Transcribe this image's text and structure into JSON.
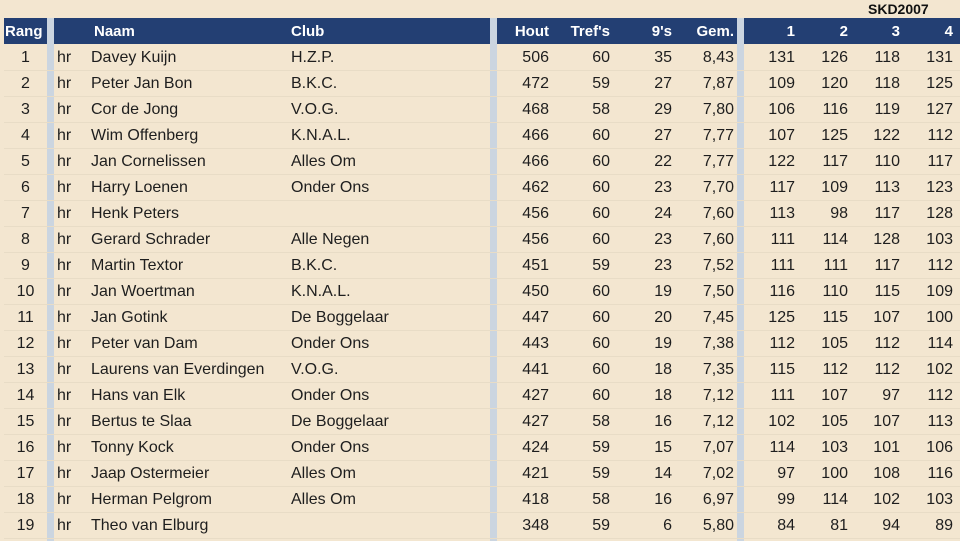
{
  "watermark": "SKD2007",
  "headers": {
    "rang": "Rang",
    "naam": "Naam",
    "club": "Club",
    "hout": "Hout",
    "trefs": "Tref's",
    "negens": "9's",
    "gem": "Gem.",
    "s1": "1",
    "s2": "2",
    "s3": "3",
    "s4": "4"
  },
  "rows": [
    [
      "1",
      "hr",
      "Davey Kuijn",
      "H.Z.P.",
      "506",
      "60",
      "35",
      "8,43",
      "131",
      "126",
      "118",
      "131"
    ],
    [
      "2",
      "hr",
      "Peter Jan Bon",
      "B.K.C.",
      "472",
      "59",
      "27",
      "7,87",
      "109",
      "120",
      "118",
      "125"
    ],
    [
      "3",
      "hr",
      "Cor de Jong",
      "V.O.G.",
      "468",
      "58",
      "29",
      "7,80",
      "106",
      "116",
      "119",
      "127"
    ],
    [
      "4",
      "hr",
      "Wim Offenberg",
      "K.N.A.L.",
      "466",
      "60",
      "27",
      "7,77",
      "107",
      "125",
      "122",
      "112"
    ],
    [
      "5",
      "hr",
      "Jan Cornelissen",
      "Alles Om",
      "466",
      "60",
      "22",
      "7,77",
      "122",
      "117",
      "110",
      "117"
    ],
    [
      "6",
      "hr",
      "Harry Loenen",
      "Onder Ons",
      "462",
      "60",
      "23",
      "7,70",
      "117",
      "109",
      "113",
      "123"
    ],
    [
      "7",
      "hr",
      "Henk Peters",
      "",
      "456",
      "60",
      "24",
      "7,60",
      "113",
      "98",
      "117",
      "128"
    ],
    [
      "8",
      "hr",
      "Gerard Schrader",
      "Alle Negen",
      "456",
      "60",
      "23",
      "7,60",
      "111",
      "114",
      "128",
      "103"
    ],
    [
      "9",
      "hr",
      "Martin Textor",
      "B.K.C.",
      "451",
      "59",
      "23",
      "7,52",
      "111",
      "111",
      "117",
      "112"
    ],
    [
      "10",
      "hr",
      "Jan Woertman",
      "K.N.A.L.",
      "450",
      "60",
      "19",
      "7,50",
      "116",
      "110",
      "115",
      "109"
    ],
    [
      "11",
      "hr",
      "Jan Gotink",
      "De Boggelaar",
      "447",
      "60",
      "20",
      "7,45",
      "125",
      "115",
      "107",
      "100"
    ],
    [
      "12",
      "hr",
      "Peter van Dam",
      "Onder Ons",
      "443",
      "60",
      "19",
      "7,38",
      "112",
      "105",
      "112",
      "114"
    ],
    [
      "13",
      "hr",
      "Laurens van Everdingen",
      "V.O.G.",
      "441",
      "60",
      "18",
      "7,35",
      "115",
      "112",
      "112",
      "102"
    ],
    [
      "14",
      "hr",
      "Hans van Elk",
      "Onder Ons",
      "427",
      "60",
      "18",
      "7,12",
      "111",
      "107",
      "97",
      "112"
    ],
    [
      "15",
      "hr",
      "Bertus te Slaa",
      "De Boggelaar",
      "427",
      "58",
      "16",
      "7,12",
      "102",
      "105",
      "107",
      "113"
    ],
    [
      "16",
      "hr",
      "Tonny Kock",
      "Onder Ons",
      "424",
      "59",
      "15",
      "7,07",
      "114",
      "103",
      "101",
      "106"
    ],
    [
      "17",
      "hr",
      "Jaap Ostermeier",
      "Alles Om",
      "421",
      "59",
      "14",
      "7,02",
      "97",
      "100",
      "108",
      "116"
    ],
    [
      "18",
      "hr",
      "Herman Pelgrom",
      "Alles Om",
      "418",
      "58",
      "16",
      "6,97",
      "99",
      "114",
      "102",
      "103"
    ],
    [
      "19",
      "hr",
      "Theo van Elburg",
      "",
      "348",
      "59",
      "6",
      "5,80",
      "84",
      "81",
      "94",
      "89"
    ]
  ]
}
